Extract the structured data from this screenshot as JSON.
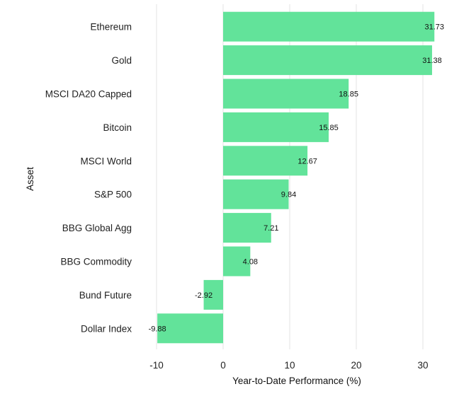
{
  "chart_data": {
    "type": "bar",
    "orientation": "horizontal",
    "categories": [
      "Ethereum",
      "Gold",
      "MSCI DA20 Capped",
      "Bitcoin",
      "MSCI World",
      "S&P 500",
      "BBG Global Agg",
      "BBG Commodity",
      "Bund Future",
      "Dollar Index"
    ],
    "values": [
      31.73,
      31.38,
      18.85,
      15.85,
      12.67,
      9.84,
      7.21,
      4.08,
      -2.92,
      -9.88
    ],
    "data_labels": [
      "31.73",
      "31.38",
      "18.85",
      "15.85",
      "12.67",
      "9.84",
      "7.21",
      "4.08",
      "-2.92",
      "-9.88"
    ],
    "xlabel": "Year-to-Date Performance (%)",
    "ylabel": "Asset",
    "xlim": [
      -13,
      37.5
    ],
    "xticks": [
      -10,
      0,
      10,
      20,
      30
    ],
    "xtick_labels": [
      "-10",
      "0",
      "10",
      "20",
      "30"
    ],
    "grid": "vertical",
    "legend": "none",
    "bar_color": "#62e39a",
    "grid_color": "#e3e3e3"
  }
}
